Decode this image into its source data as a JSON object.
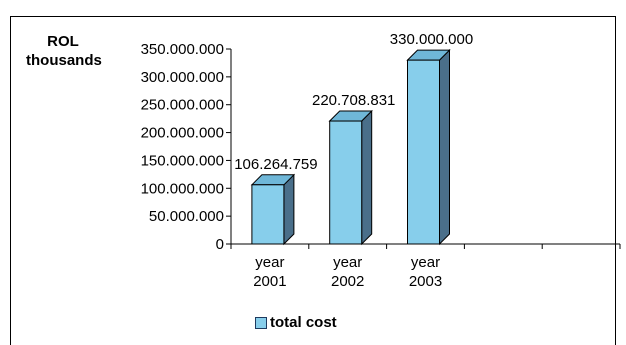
{
  "chart_data": {
    "type": "bar",
    "title": "",
    "ylabel": "ROL thousands",
    "ylabel_lines": [
      "ROL",
      "thousands"
    ],
    "xlabel": "",
    "categories": [
      [
        "year",
        "2001"
      ],
      [
        "year",
        "2002"
      ],
      [
        "year",
        "2003"
      ]
    ],
    "series": [
      {
        "name": "total cost",
        "values": [
          106264759,
          220708831,
          330000000
        ]
      }
    ],
    "data_labels": [
      "106.264.759",
      "220.708.831",
      "330.000.000"
    ],
    "ylim": [
      0,
      350000000
    ],
    "yticks": [
      0,
      50000000,
      100000000,
      150000000,
      200000000,
      250000000,
      300000000,
      350000000
    ],
    "ytick_labels": [
      "0",
      "50.000.000",
      "100.000.000",
      "150.000.000",
      "200.000.000",
      "250.000.000",
      "300.000.000",
      "350.000.000"
    ],
    "grid": false,
    "legend_position": "bottom-center",
    "bar_color": "#87ceeb",
    "bar_side_color": "#4a6f8a",
    "bar_top_color": "#6fb7d8",
    "extra_empty_slots": 2
  }
}
